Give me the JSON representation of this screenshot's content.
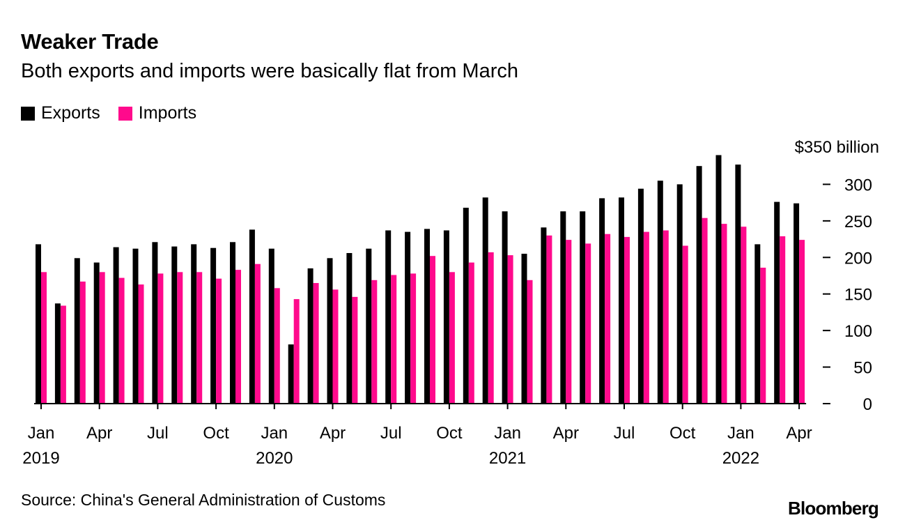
{
  "header": {
    "title": "Weaker Trade",
    "subtitle": "Both exports and imports were basically flat from March"
  },
  "legend": [
    {
      "label": "Exports",
      "color": "#000000"
    },
    {
      "label": "Imports",
      "color": "#ff0a8c"
    }
  ],
  "footer": {
    "source": "Source: China's General Administration of Customs",
    "brand": "Bloomberg"
  },
  "chart_data": {
    "type": "bar",
    "title": "Weaker Trade",
    "subtitle": "Both exports and imports were basically flat from March",
    "xlabel": "",
    "ylabel": "",
    "y_unit_label": "$350 billion",
    "ylim": [
      0,
      350
    ],
    "yticks": [
      0,
      50,
      100,
      150,
      200,
      250,
      300
    ],
    "grid": false,
    "legend_position": "top-left",
    "categories": [
      "Jan 2019",
      "Feb 2019",
      "Mar 2019",
      "Apr 2019",
      "May 2019",
      "Jun 2019",
      "Jul 2019",
      "Aug 2019",
      "Sep 2019",
      "Oct 2019",
      "Nov 2019",
      "Dec 2019",
      "Jan 2020",
      "Feb 2020",
      "Mar 2020",
      "Apr 2020",
      "May 2020",
      "Jun 2020",
      "Jul 2020",
      "Aug 2020",
      "Sep 2020",
      "Oct 2020",
      "Nov 2020",
      "Dec 2020",
      "Jan 2021",
      "Feb 2021",
      "Mar 2021",
      "Apr 2021",
      "May 2021",
      "Jun 2021",
      "Jul 2021",
      "Aug 2021",
      "Sep 2021",
      "Oct 2021",
      "Nov 2021",
      "Dec 2021",
      "Jan 2022",
      "Feb 2022",
      "Mar 2022",
      "Apr 2022"
    ],
    "x_tick_labels": [
      {
        "index": 0,
        "month": "Jan",
        "year": "2019"
      },
      {
        "index": 3,
        "month": "Apr",
        "year": ""
      },
      {
        "index": 6,
        "month": "Jul",
        "year": ""
      },
      {
        "index": 9,
        "month": "Oct",
        "year": ""
      },
      {
        "index": 12,
        "month": "Jan",
        "year": "2020"
      },
      {
        "index": 15,
        "month": "Apr",
        "year": ""
      },
      {
        "index": 18,
        "month": "Jul",
        "year": ""
      },
      {
        "index": 21,
        "month": "Oct",
        "year": ""
      },
      {
        "index": 24,
        "month": "Jan",
        "year": "2021"
      },
      {
        "index": 27,
        "month": "Apr",
        "year": ""
      },
      {
        "index": 30,
        "month": "Jul",
        "year": ""
      },
      {
        "index": 33,
        "month": "Oct",
        "year": ""
      },
      {
        "index": 36,
        "month": "Jan",
        "year": "2022"
      },
      {
        "index": 39,
        "month": "Apr",
        "year": ""
      }
    ],
    "series": [
      {
        "name": "Exports",
        "color": "#000000",
        "values": [
          218,
          137,
          199,
          193,
          214,
          212,
          221,
          215,
          218,
          213,
          221,
          238,
          212,
          81,
          185,
          199,
          206,
          212,
          237,
          235,
          239,
          237,
          268,
          282,
          263,
          205,
          241,
          263,
          263,
          281,
          282,
          294,
          305,
          300,
          325,
          340,
          327,
          218,
          276,
          274
        ]
      },
      {
        "name": "Imports",
        "color": "#ff0a8c",
        "values": [
          180,
          134,
          167,
          180,
          172,
          163,
          178,
          180,
          180,
          171,
          183,
          191,
          158,
          143,
          165,
          156,
          146,
          169,
          176,
          178,
          202,
          180,
          193,
          207,
          203,
          169,
          230,
          224,
          219,
          232,
          228,
          235,
          237,
          216,
          254,
          246,
          242,
          186,
          229,
          224
        ]
      }
    ]
  }
}
